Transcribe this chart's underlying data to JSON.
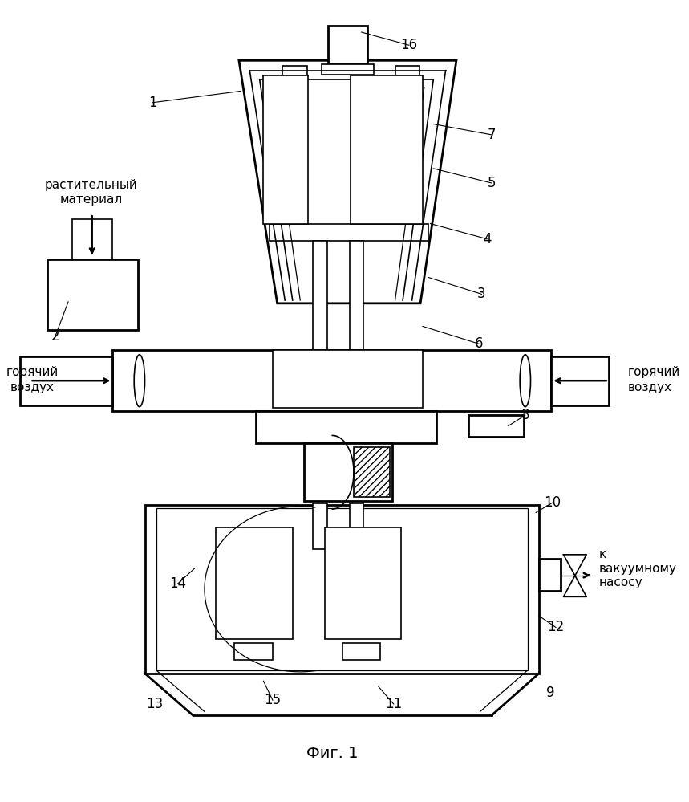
{
  "bg_color": "#ffffff",
  "lc": "#000000",
  "title": "Фиг. 1",
  "text_plant_1": "растительный",
  "text_plant_2": "материал",
  "text_hot_l1": "горячий",
  "text_hot_l2": "воздух",
  "text_hot_r1": "горячий",
  "text_hot_r2": "воздух",
  "text_vac1": "к",
  "text_vac2": "вакуумному",
  "text_vac3": "насосу"
}
